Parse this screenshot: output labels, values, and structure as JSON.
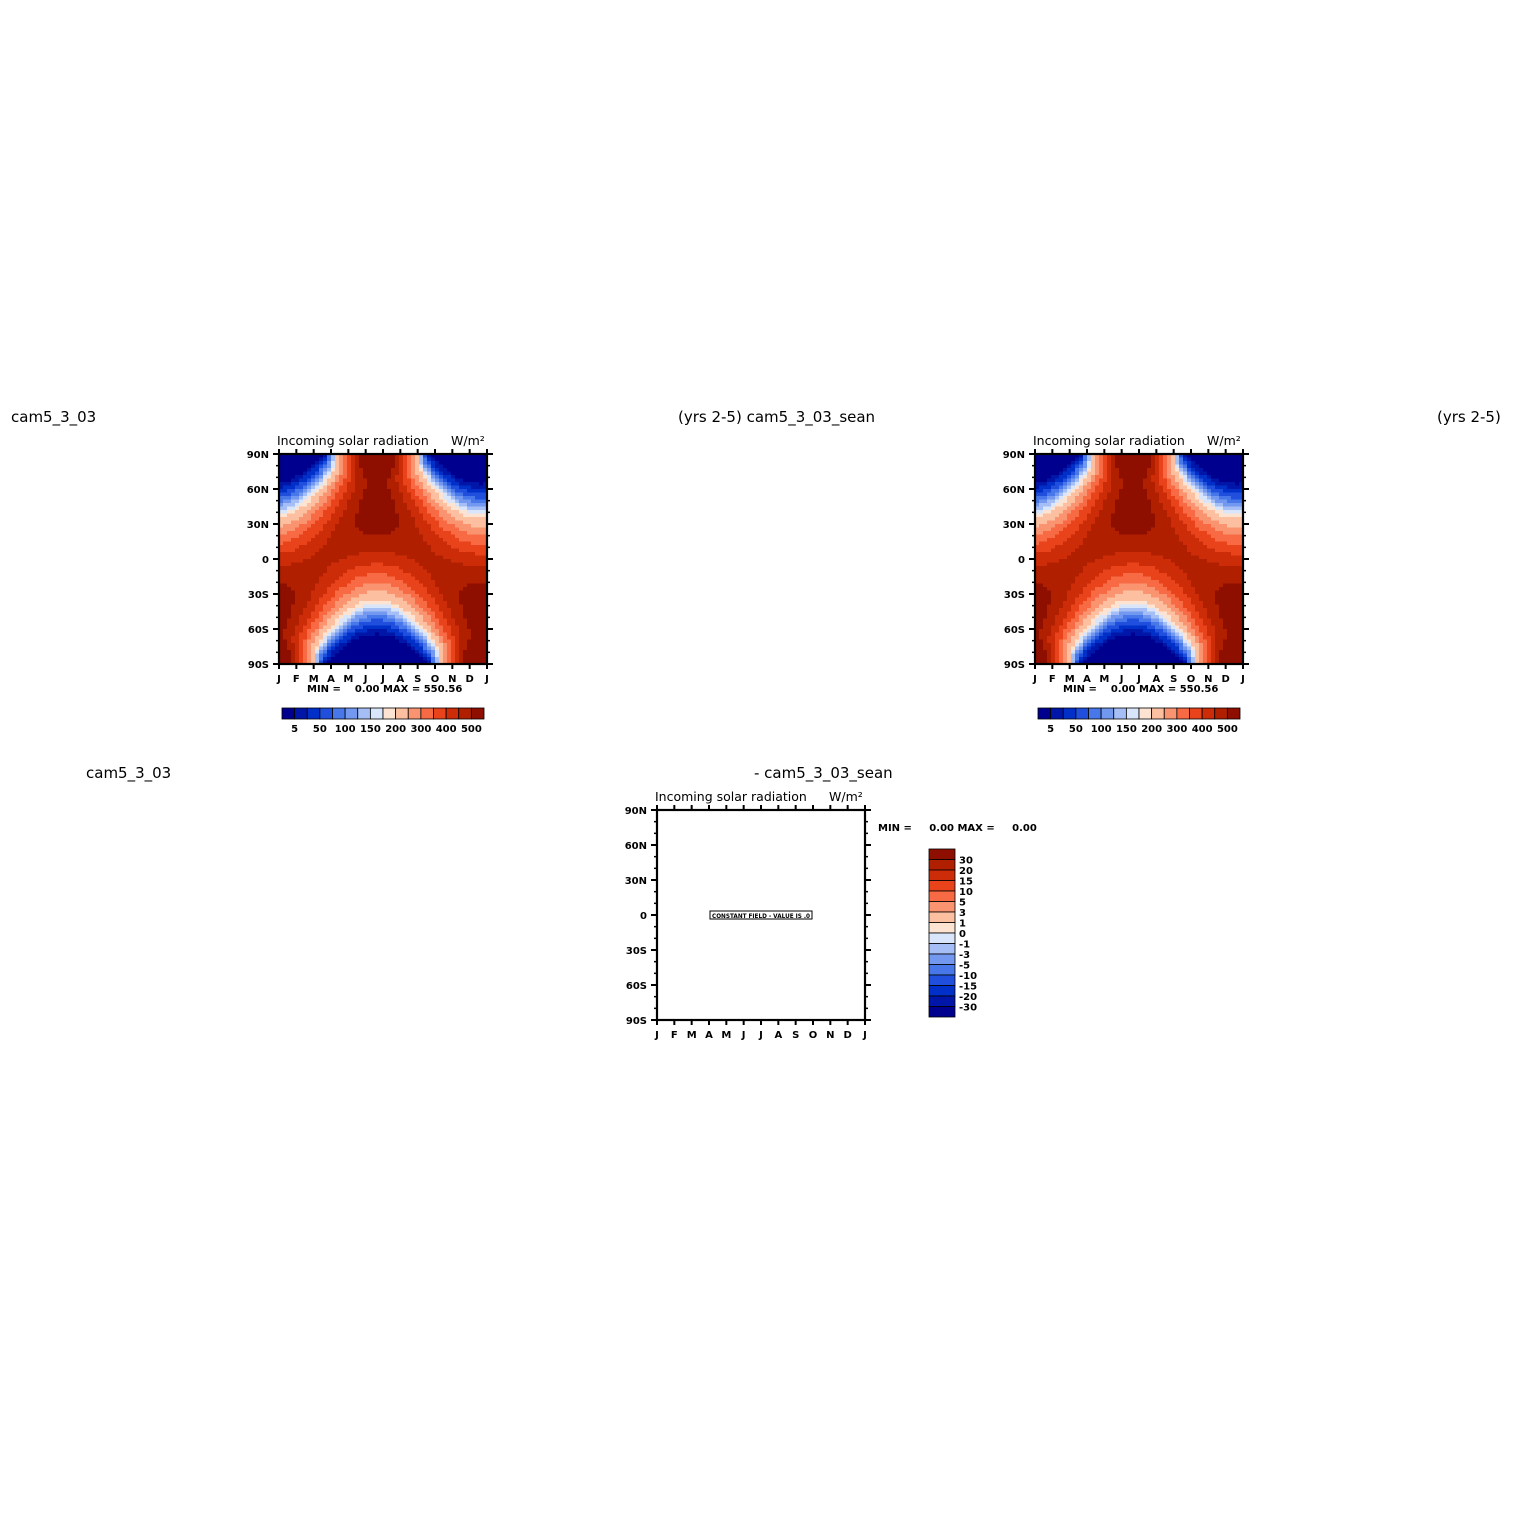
{
  "headers": {
    "top_left": "cam5_3_03",
    "top_center": "(yrs 2-5) cam5_3_03_sean",
    "top_right": "(yrs 2-5)",
    "bottom_left": "cam5_3_03",
    "bottom_center": "- cam5_3_03_sean"
  },
  "colors": {
    "main_scale": [
      "#00008f",
      "#0016a8",
      "#0030c8",
      "#1f4fdc",
      "#4777e8",
      "#7398f0",
      "#a5bef6",
      "#d8e5fb",
      "#fde4d2",
      "#fcbfa0",
      "#fa9470",
      "#f76a44",
      "#e9431c",
      "#cc2c08",
      "#b01f00",
      "#8e0f00"
    ],
    "diff_scale": [
      "#8e0f00",
      "#b01f00",
      "#cc2c08",
      "#e9431c",
      "#f76a44",
      "#fa9470",
      "#fcbfa0",
      "#fde4d2",
      "#d8e5fb",
      "#a5bef6",
      "#7398f0",
      "#4777e8",
      "#1f4fdc",
      "#0030c8",
      "#0016a8",
      "#00008f"
    ]
  },
  "chart_data": [
    {
      "type": "heatmap",
      "title": "Incoming solar radiation",
      "units": "W/m²",
      "x_ticks": [
        "J",
        "F",
        "M",
        "A",
        "M",
        "J",
        "J",
        "A",
        "S",
        "O",
        "N",
        "D",
        "J"
      ],
      "y_ticks": [
        "90N",
        "60N",
        "30N",
        "0",
        "30S",
        "60S",
        "90S"
      ],
      "ylim": [
        -90,
        90
      ],
      "stats": "MIN =    0.00 MAX = 550.56",
      "min": 0.0,
      "max": 550.56,
      "colorbar_labels": [
        "5",
        "50",
        "100",
        "150",
        "200",
        "300",
        "400",
        "500"
      ]
    },
    {
      "type": "heatmap",
      "title": "Incoming solar radiation",
      "units": "W/m²",
      "x_ticks": [
        "J",
        "F",
        "M",
        "A",
        "M",
        "J",
        "J",
        "A",
        "S",
        "O",
        "N",
        "D",
        "J"
      ],
      "y_ticks": [
        "90N",
        "60N",
        "30N",
        "0",
        "30S",
        "60S",
        "90S"
      ],
      "ylim": [
        -90,
        90
      ],
      "stats": "MIN =    0.00 MAX = 550.56",
      "min": 0.0,
      "max": 550.56,
      "colorbar_labels": [
        "5",
        "50",
        "100",
        "150",
        "200",
        "300",
        "400",
        "500"
      ]
    },
    {
      "type": "heatmap",
      "title": "Incoming solar radiation",
      "units": "W/m²",
      "x_ticks": [
        "J",
        "F",
        "M",
        "A",
        "M",
        "J",
        "J",
        "A",
        "S",
        "O",
        "N",
        "D",
        "J"
      ],
      "y_ticks": [
        "90N",
        "60N",
        "30N",
        "0",
        "30S",
        "60S",
        "90S"
      ],
      "ylim": [
        -90,
        90
      ],
      "stats": "MIN =     0.00 MAX =     0.00",
      "min": 0.0,
      "max": 0.0,
      "constant_field_label": "CONSTANT FIELD - VALUE IS .0",
      "colorbar_labels": [
        "30",
        "20",
        "15",
        "10",
        "5",
        "3",
        "1",
        "0",
        "-1",
        "-3",
        "-5",
        "-10",
        "-15",
        "-20",
        "-30"
      ]
    }
  ]
}
